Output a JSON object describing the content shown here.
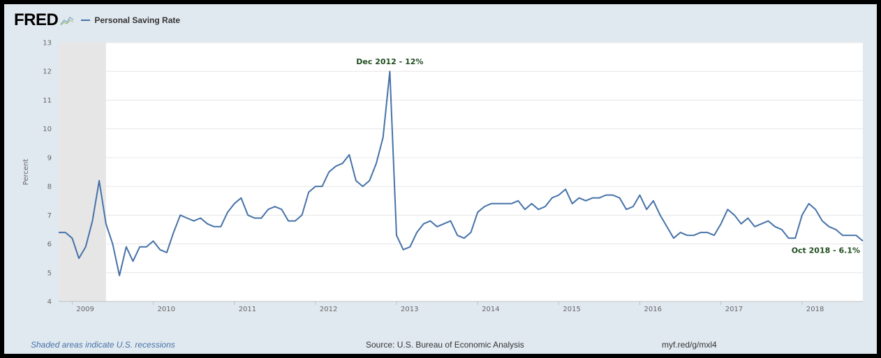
{
  "header": {
    "logo": "FRED",
    "logo_icon": "line-chart-icon",
    "series_label": "Personal Saving Rate"
  },
  "footer": {
    "recession_note": "Shaded areas indicate U.S. recessions",
    "source": "Source: U.S. Bureau of Economic Analysis",
    "link": "myf.red/g/mxl4"
  },
  "colors": {
    "line": "#4572a7",
    "recession": "#e6e6e6",
    "background": "#e1e9f0",
    "plot": "#ffffff",
    "annotation": "#1e4d1e"
  },
  "chart_data": {
    "type": "line",
    "title": "",
    "xlabel": "",
    "ylabel": "Percent",
    "ylim": [
      4,
      13
    ],
    "yticks": [
      4,
      5,
      6,
      7,
      8,
      9,
      10,
      11,
      12,
      13
    ],
    "xlim": [
      "2008-11",
      "2018-10"
    ],
    "xticks": [
      "2009",
      "2010",
      "2011",
      "2012",
      "2013",
      "2014",
      "2015",
      "2016",
      "2017",
      "2018"
    ],
    "grid": true,
    "legend": "top-left",
    "recessions": [
      {
        "start": "2008-11",
        "end": "2009-06"
      }
    ],
    "annotations": [
      {
        "text": "Dec 2012 - 12%",
        "x": "2012-12",
        "y": 12.0
      },
      {
        "text": "Oct 2018 - 6.1%",
        "x": "2018-10",
        "y": 6.1
      }
    ],
    "series": [
      {
        "name": "Personal Saving Rate",
        "start": "2008-11",
        "frequency": "monthly",
        "values": [
          6.4,
          6.4,
          6.2,
          5.5,
          5.9,
          6.8,
          8.2,
          6.7,
          6.0,
          4.9,
          5.9,
          5.4,
          5.9,
          5.9,
          6.1,
          5.8,
          5.7,
          6.4,
          7.0,
          6.9,
          6.8,
          6.9,
          6.7,
          6.6,
          6.6,
          7.1,
          7.4,
          7.6,
          7.0,
          6.9,
          6.9,
          7.2,
          7.3,
          7.2,
          6.8,
          6.8,
          7.0,
          7.8,
          8.0,
          8.0,
          8.5,
          8.7,
          8.8,
          9.1,
          8.2,
          8.0,
          8.2,
          8.8,
          9.7,
          12.0,
          6.3,
          5.8,
          5.9,
          6.4,
          6.7,
          6.8,
          6.6,
          6.7,
          6.8,
          6.3,
          6.2,
          6.4,
          7.1,
          7.3,
          7.4,
          7.4,
          7.4,
          7.4,
          7.5,
          7.2,
          7.4,
          7.2,
          7.3,
          7.6,
          7.7,
          7.9,
          7.4,
          7.6,
          7.5,
          7.6,
          7.6,
          7.7,
          7.7,
          7.6,
          7.2,
          7.3,
          7.7,
          7.2,
          7.5,
          7.0,
          6.6,
          6.2,
          6.4,
          6.3,
          6.3,
          6.4,
          6.4,
          6.3,
          6.7,
          7.2,
          7.0,
          6.7,
          6.9,
          6.6,
          6.7,
          6.8,
          6.6,
          6.5,
          6.2,
          6.2,
          7.0,
          7.4,
          7.2,
          6.8,
          6.6,
          6.5,
          6.3,
          6.3,
          6.3,
          6.1
        ]
      }
    ]
  }
}
